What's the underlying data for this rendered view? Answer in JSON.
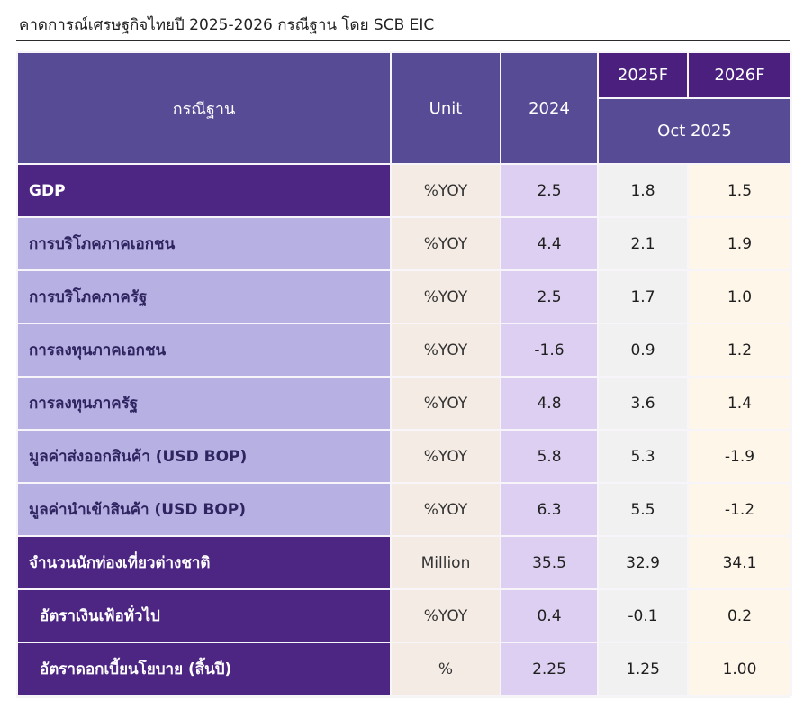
{
  "title": "คาดการณ์เศรษฐกิจไทยปี 2025-2026 กรณีฐาน โดย SCB EIC",
  "header": {
    "scenario": "กรณีฐาน",
    "unit": "Unit",
    "year_2024": "2024",
    "year_2025f": "2025F",
    "year_2026f": "2026F",
    "forecast_date": "Oct 2025"
  },
  "rows": [
    {
      "label": "GDP",
      "unit": "%YOY",
      "y2024": "2.5",
      "y2025": "1.8",
      "y2026": "1.5"
    },
    {
      "label": "การบริโภคภาคเอกชน",
      "unit": "%YOY",
      "y2024": "4.4",
      "y2025": "2.1",
      "y2026": "1.9"
    },
    {
      "label": "การบริโภคภาครัฐ",
      "unit": "%YOY",
      "y2024": "2.5",
      "y2025": "1.7",
      "y2026": "1.0"
    },
    {
      "label": "การลงทุนภาคเอกชน",
      "unit": "%YOY",
      "y2024": "-1.6",
      "y2025": "0.9",
      "y2026": "1.2"
    },
    {
      "label": "การลงทุนภาครัฐ",
      "unit": "%YOY",
      "y2024": "4.8",
      "y2025": "3.6",
      "y2026": "1.4"
    },
    {
      "label": "มูลค่าส่งออกสินค้า (USD BOP)",
      "unit": "%YOY",
      "y2024": "5.8",
      "y2025": "5.3",
      "y2026": "-1.9"
    },
    {
      "label": "มูลค่านำเข้าสินค้า (USD BOP)",
      "unit": "%YOY",
      "y2024": "6.3",
      "y2025": "5.5",
      "y2026": "-1.2"
    },
    {
      "label": "จำนวนนักท่องเที่ยวต่างชาติ",
      "unit": "Million",
      "y2024": "35.5",
      "y2025": "32.9",
      "y2026": "34.1"
    },
    {
      "label": "อัตราเงินเฟ้อทั่วไป",
      "unit": "%YOY",
      "y2024": "0.4",
      "y2025": "-0.1",
      "y2026": "0.2"
    },
    {
      "label": "อัตราดอกเบี้ยนโยบาย (สิ้นปี)",
      "unit": "%",
      "y2024": "2.25",
      "y2025": "1.25",
      "y2026": "1.00"
    }
  ],
  "colors": {
    "header": "#574b96",
    "header_dark": "#4a1f7e",
    "row_dark": "#4d2583",
    "row_light": "#b7b0e3"
  }
}
